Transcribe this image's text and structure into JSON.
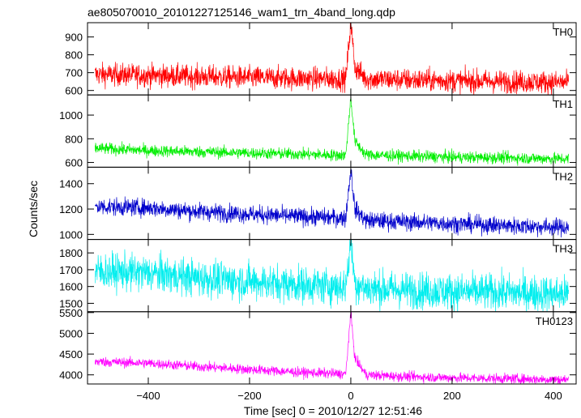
{
  "chart_data": {
    "type": "line",
    "title": "ae805070010_20101227125146_wam1_trn_4band_long.qdp",
    "xlabel": "Time [sec] 0 = 2010/12/27 12:51:46",
    "ylabel": "Counts/sec",
    "xlim": [
      -520,
      445
    ],
    "x_ticks": [
      -400,
      -200,
      0,
      200,
      400
    ],
    "x_tick_labels": [
      "−400",
      "−200",
      "0",
      "200",
      "400"
    ],
    "burst_time": 0,
    "panels": [
      {
        "name": "TH0",
        "color": "#ff0000",
        "ylim": [
          575,
          980
        ],
        "y_ticks": [
          600,
          700,
          800,
          900
        ],
        "y_tick_labels": [
          "600",
          "700",
          "800",
          "900"
        ],
        "series": [
          {
            "t": -505,
            "v": 690
          },
          {
            "t": -400,
            "v": 685
          },
          {
            "t": -300,
            "v": 678
          },
          {
            "t": -200,
            "v": 672
          },
          {
            "t": -100,
            "v": 668
          },
          {
            "t": -10,
            "v": 665
          },
          {
            "t": 0,
            "v": 980
          },
          {
            "t": 8,
            "v": 730
          },
          {
            "t": 30,
            "v": 665
          },
          {
            "t": 100,
            "v": 660
          },
          {
            "t": 200,
            "v": 655
          },
          {
            "t": 300,
            "v": 650
          },
          {
            "t": 430,
            "v": 645
          }
        ],
        "noise": 32
      },
      {
        "name": "TH1",
        "color": "#00ee00",
        "ylim": [
          560,
          1170
        ],
        "y_ticks": [
          600,
          800,
          1000
        ],
        "y_tick_labels": [
          "600",
          "800",
          "1000"
        ],
        "series": [
          {
            "t": -505,
            "v": 720
          },
          {
            "t": -400,
            "v": 700
          },
          {
            "t": -300,
            "v": 690
          },
          {
            "t": -200,
            "v": 680
          },
          {
            "t": -100,
            "v": 670
          },
          {
            "t": -10,
            "v": 660
          },
          {
            "t": 0,
            "v": 1150
          },
          {
            "t": 8,
            "v": 780
          },
          {
            "t": 30,
            "v": 665
          },
          {
            "t": 100,
            "v": 655
          },
          {
            "t": 200,
            "v": 645
          },
          {
            "t": 300,
            "v": 640
          },
          {
            "t": 430,
            "v": 630
          }
        ],
        "noise": 25
      },
      {
        "name": "TH2",
        "color": "#0000cc",
        "ylim": [
          960,
          1530
        ],
        "y_ticks": [
          1000,
          1200,
          1400
        ],
        "y_tick_labels": [
          "1000",
          "1200",
          "1400"
        ],
        "series": [
          {
            "t": -505,
            "v": 1220
          },
          {
            "t": -400,
            "v": 1210
          },
          {
            "t": -300,
            "v": 1180
          },
          {
            "t": -200,
            "v": 1160
          },
          {
            "t": -100,
            "v": 1140
          },
          {
            "t": -10,
            "v": 1130
          },
          {
            "t": 0,
            "v": 1520
          },
          {
            "t": 8,
            "v": 1200
          },
          {
            "t": 30,
            "v": 1110
          },
          {
            "t": 100,
            "v": 1100
          },
          {
            "t": 200,
            "v": 1085
          },
          {
            "t": 300,
            "v": 1070
          },
          {
            "t": 430,
            "v": 1055
          }
        ],
        "noise": 35
      },
      {
        "name": "TH3",
        "color": "#00eeee",
        "ylim": [
          1450,
          1880
        ],
        "y_ticks": [
          1500,
          1600,
          1700,
          1800
        ],
        "y_tick_labels": [
          "1500",
          "1600",
          "1700",
          "1800"
        ],
        "series": [
          {
            "t": -505,
            "v": 1690
          },
          {
            "t": -400,
            "v": 1680
          },
          {
            "t": -300,
            "v": 1650
          },
          {
            "t": -200,
            "v": 1630
          },
          {
            "t": -100,
            "v": 1610
          },
          {
            "t": -10,
            "v": 1600
          },
          {
            "t": 0,
            "v": 1870
          },
          {
            "t": 8,
            "v": 1620
          },
          {
            "t": 30,
            "v": 1590
          },
          {
            "t": 100,
            "v": 1580
          },
          {
            "t": 200,
            "v": 1570
          },
          {
            "t": 300,
            "v": 1565
          },
          {
            "t": 430,
            "v": 1555
          }
        ],
        "noise": 55
      },
      {
        "name": "TH0123",
        "color": "#ff00ff",
        "ylim": [
          3780,
          5520
        ],
        "y_ticks": [
          4000,
          4500,
          5000,
          5500
        ],
        "y_tick_labels": [
          "4000",
          "4500",
          "5000",
          "5500"
        ],
        "series": [
          {
            "t": -505,
            "v": 4320
          },
          {
            "t": -400,
            "v": 4280
          },
          {
            "t": -300,
            "v": 4200
          },
          {
            "t": -200,
            "v": 4130
          },
          {
            "t": -100,
            "v": 4060
          },
          {
            "t": -10,
            "v": 4020
          },
          {
            "t": 0,
            "v": 5500
          },
          {
            "t": 8,
            "v": 4400
          },
          {
            "t": 30,
            "v": 4000
          },
          {
            "t": 100,
            "v": 3960
          },
          {
            "t": 200,
            "v": 3930
          },
          {
            "t": 300,
            "v": 3910
          },
          {
            "t": 430,
            "v": 3880
          }
        ],
        "noise": 60
      }
    ]
  }
}
